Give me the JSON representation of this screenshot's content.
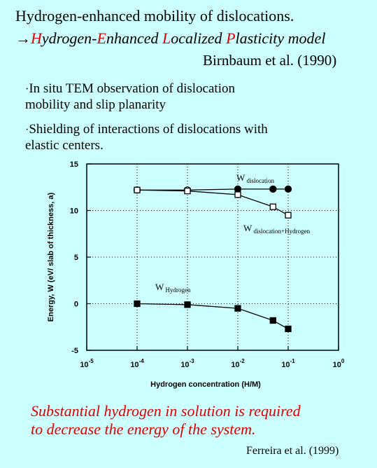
{
  "header": {
    "title_line1": "Hydrogen-enhanced mobility of dislocations.",
    "arrow": "→",
    "model_parts": [
      {
        "letter": "H",
        "rest": "ydrogen-"
      },
      {
        "letter": "E",
        "rest": "nhanced "
      },
      {
        "letter": "L",
        "rest": "ocalized "
      },
      {
        "letter": "P",
        "rest": "lasticity model"
      }
    ],
    "citation": "Birnbaum et al. (1990)"
  },
  "bullets": [
    {
      "marker": "·",
      "line1": "In situ TEM observation of dislocation",
      "line2": "mobility and slip planarity"
    },
    {
      "marker": "·",
      "line1": "Shielding of interactions of dislocations with",
      "line2": "elastic centers."
    }
  ],
  "chart_data": {
    "type": "line",
    "x_scale": "log",
    "xlim_exp": [
      -5,
      0
    ],
    "ylim": [
      -5,
      15
    ],
    "x_ticks": [
      {
        "exp": -5,
        "base": "10",
        "sup": "-5"
      },
      {
        "exp": -4,
        "base": "10",
        "sup": "-4"
      },
      {
        "exp": -3,
        "base": "10",
        "sup": "-3"
      },
      {
        "exp": -2,
        "base": "10",
        "sup": "-2"
      },
      {
        "exp": -1,
        "base": "10",
        "sup": "-1"
      },
      {
        "exp": 0,
        "base": "10",
        "sup": "0"
      }
    ],
    "y_ticks": [
      "15",
      "10",
      "5",
      "0",
      "-5"
    ],
    "xlabel": "Hydrogen concentration (H/M)",
    "ylabel": "Energy,  W  (eV/ slab of thickness, a)",
    "grid": true,
    "series": [
      {
        "label_main": "W",
        "label_sub": "dislocation",
        "marker": "circle",
        "fill": "mixed",
        "x": [
          0.0001,
          0.001,
          0.01,
          0.05,
          0.1
        ],
        "y": [
          12.2,
          12.2,
          12.3,
          12.3,
          12.3
        ],
        "filled": [
          false,
          false,
          true,
          true,
          true
        ]
      },
      {
        "label_main": "W",
        "label_sub": "dislocation+Hydrogen",
        "marker": "square",
        "fill": "open",
        "x": [
          0.0001,
          0.001,
          0.01,
          0.05,
          0.1
        ],
        "y": [
          12.2,
          12.1,
          11.7,
          10.4,
          9.5
        ]
      },
      {
        "label_main": "W",
        "label_sub": "Hydrogen",
        "marker": "square",
        "fill": "filled",
        "x": [
          0.0001,
          0.001,
          0.01,
          0.05,
          0.1
        ],
        "y": [
          0.0,
          -0.1,
          -0.5,
          -1.8,
          -2.7
        ]
      }
    ]
  },
  "conclusion": {
    "line1": "Substantial hydrogen in solution is required",
    "line2": "to decrease the energy of the system."
  },
  "footer_citation": "Ferreira et al. (1999)",
  "colors": {
    "background": "#ccffff",
    "accent_red": "#e00000"
  }
}
